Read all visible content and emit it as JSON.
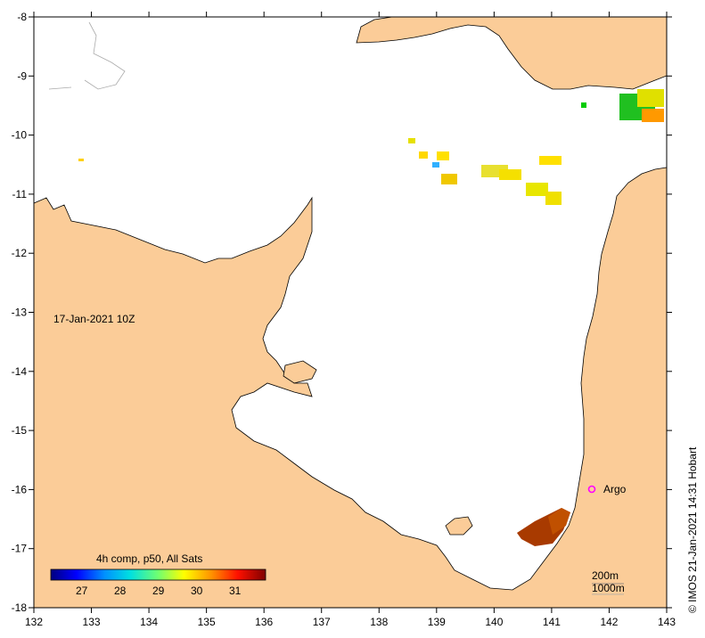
{
  "map": {
    "date_label": "17-Jan-2021 10Z",
    "credit": "© IMOS 21-Jan-2021 14:31 Hobart",
    "lon_ticks": [
      "132",
      "133",
      "134",
      "135",
      "136",
      "137",
      "138",
      "139",
      "140",
      "141",
      "142",
      "143"
    ],
    "lat_ticks": [
      "-8",
      "-9",
      "-10",
      "-11",
      "-12",
      "-13",
      "-14",
      "-15",
      "-16",
      "-17",
      "-18"
    ],
    "colorbar": {
      "title": "4h comp, p50, All Sats",
      "ticks": [
        "27",
        "28",
        "29",
        "30",
        "31"
      ],
      "colors": [
        "#00007f",
        "#0000ff",
        "#0080ff",
        "#00ffff",
        "#80ff80",
        "#ffff00",
        "#ff8000",
        "#ff0000",
        "#7f0000"
      ]
    },
    "depth_legend": [
      "200m",
      "1000m"
    ],
    "argo_label": "Argo",
    "land_color": "#fbcc98",
    "sea_color": "#ffffff"
  }
}
